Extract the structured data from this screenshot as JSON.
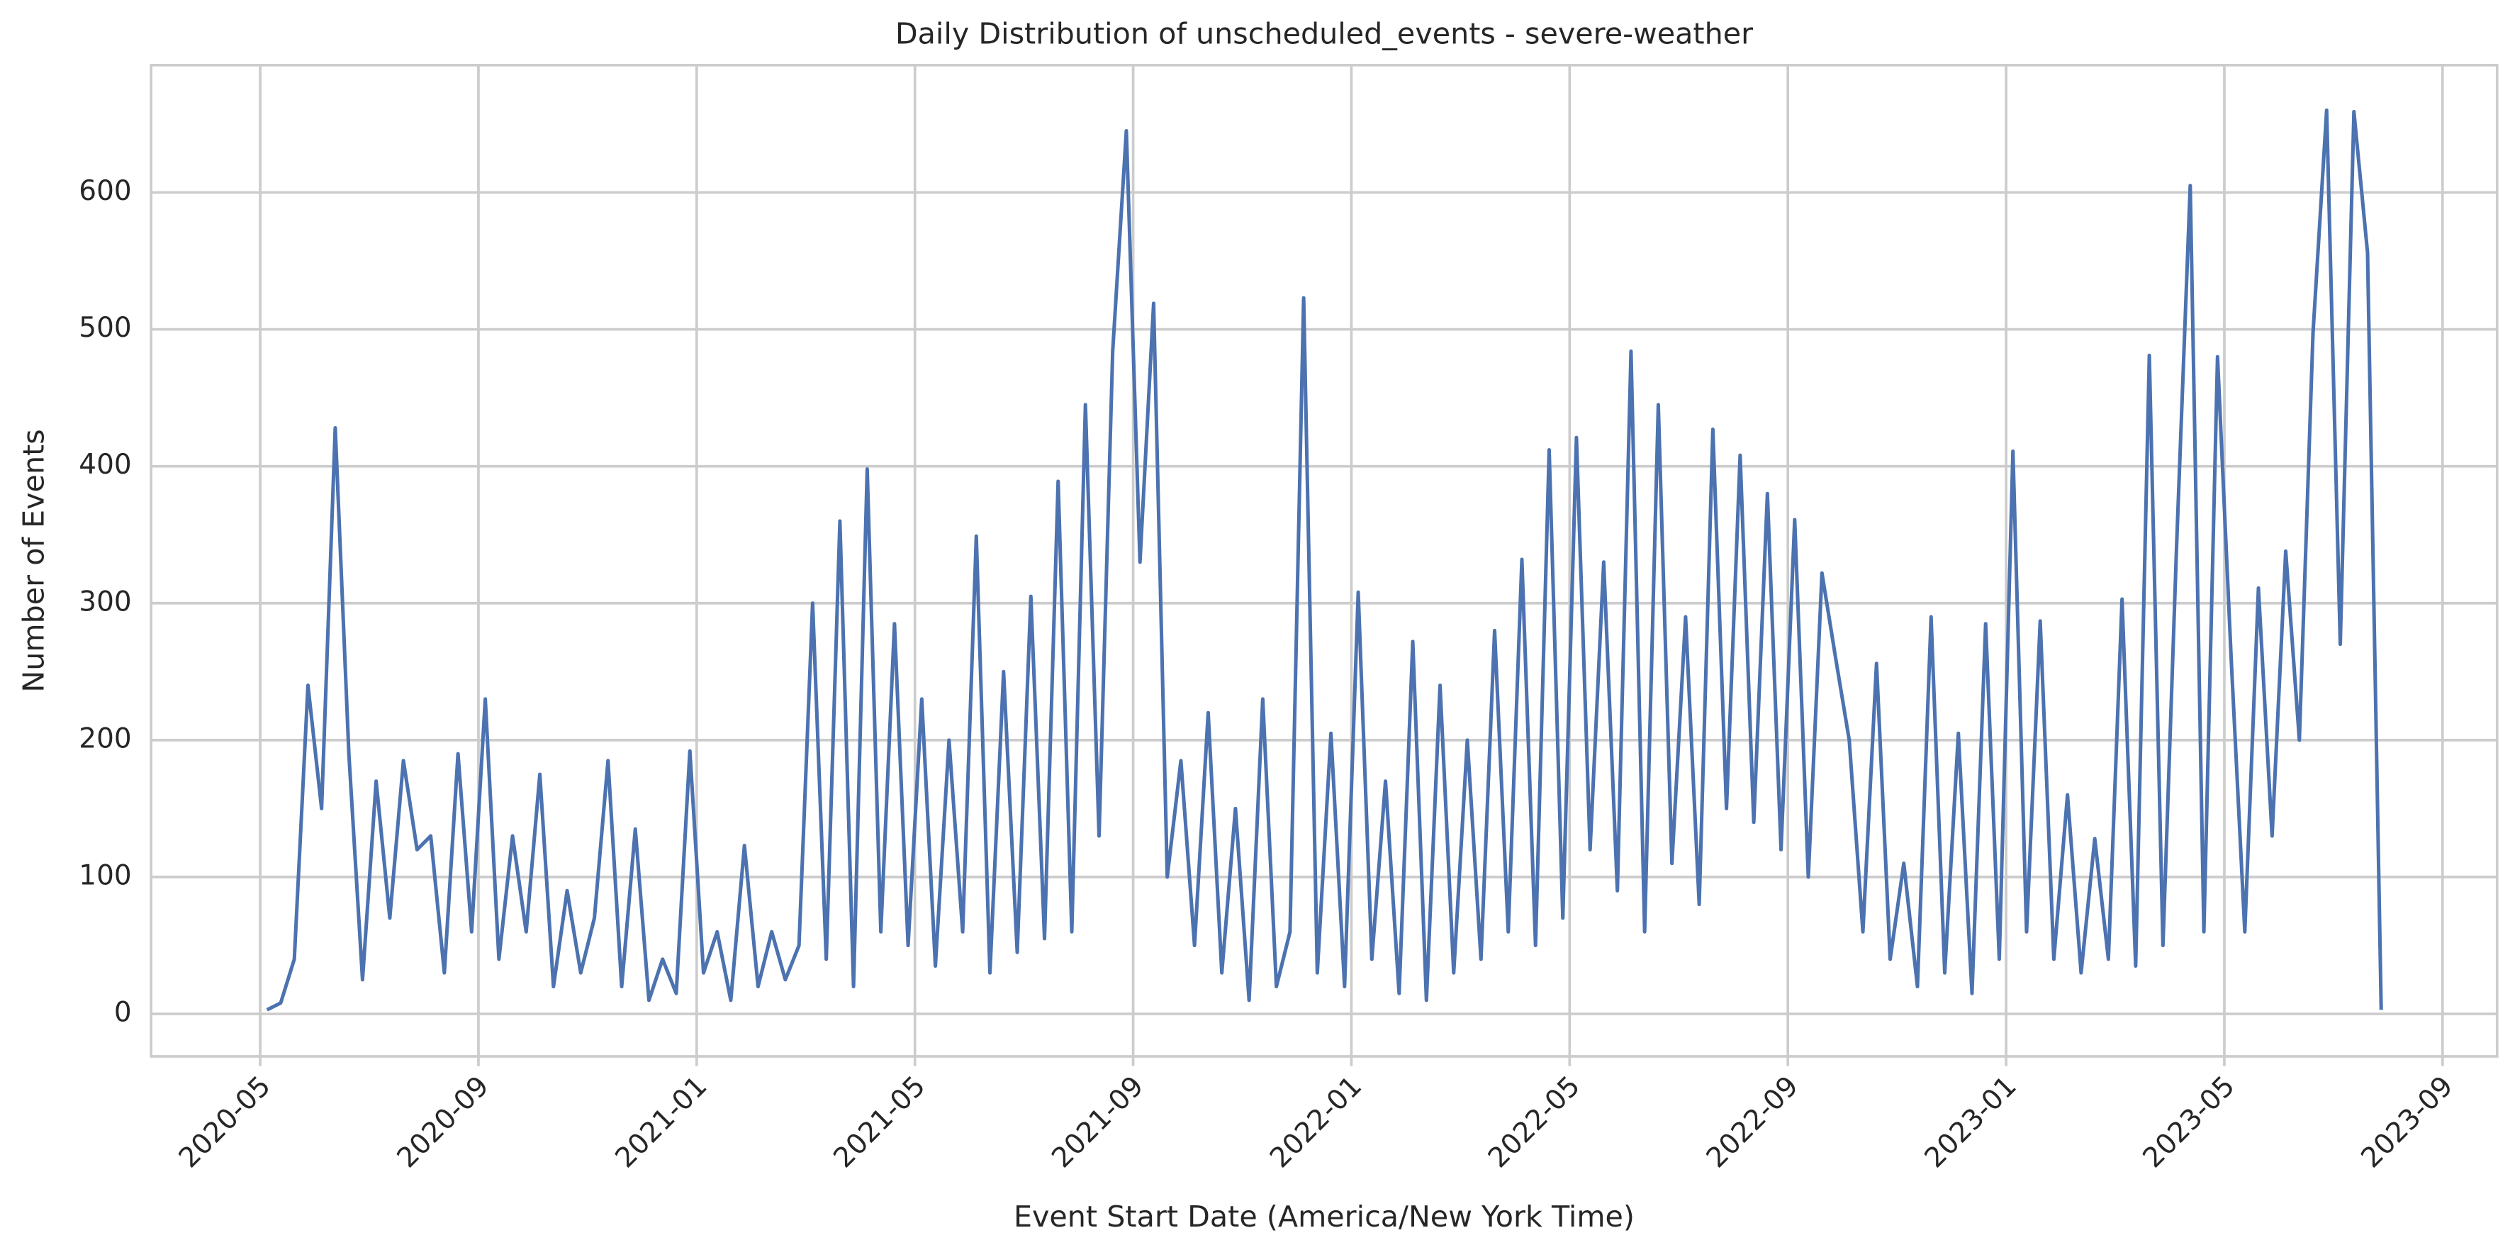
{
  "chart_data": {
    "type": "line",
    "title": "Daily Distribution of unscheduled_events - severe-weather",
    "x_label": "Event Start Date (America/New York Time)",
    "y_label": "Number of Events",
    "xlim": [
      "2020-03",
      "2023-10"
    ],
    "xticks": [
      "2020-05",
      "2020-09",
      "2021-01",
      "2021-05",
      "2021-09",
      "2022-01",
      "2022-05",
      "2022-09",
      "2023-01",
      "2023-05",
      "2023-09"
    ],
    "ylim": [
      -31,
      693
    ],
    "yticks": [
      0,
      100,
      200,
      300,
      400,
      500,
      600
    ],
    "grid": true,
    "x": [
      "2020-05",
      "2020-05",
      "2020-05",
      "2020-05",
      "2020-06",
      "2020-06",
      "2020-06",
      "2020-06",
      "2020-07",
      "2020-07",
      "2020-07",
      "2020-07",
      "2020-08",
      "2020-08",
      "2020-08",
      "2020-08",
      "2020-09",
      "2020-09",
      "2020-09",
      "2020-09",
      "2020-10",
      "2020-10",
      "2020-10",
      "2020-10",
      "2020-11",
      "2020-11",
      "2020-11",
      "2020-11",
      "2020-12",
      "2020-12",
      "2020-12",
      "2020-12",
      "2021-01",
      "2021-01",
      "2021-01",
      "2021-01",
      "2021-02",
      "2021-02",
      "2021-02",
      "2021-02",
      "2021-03",
      "2021-03",
      "2021-03",
      "2021-03",
      "2021-04",
      "2021-04",
      "2021-04",
      "2021-04",
      "2021-05",
      "2021-05",
      "2021-05",
      "2021-05",
      "2021-06",
      "2021-06",
      "2021-06",
      "2021-06",
      "2021-07",
      "2021-07",
      "2021-07",
      "2021-07",
      "2021-08",
      "2021-08",
      "2021-08",
      "2021-08",
      "2021-09",
      "2021-09",
      "2021-09",
      "2021-09",
      "2021-10",
      "2021-10",
      "2021-10",
      "2021-10",
      "2021-11",
      "2021-11",
      "2021-11",
      "2021-11",
      "2021-12",
      "2021-12",
      "2021-12",
      "2021-12",
      "2022-01",
      "2022-01",
      "2022-01",
      "2022-01",
      "2022-02",
      "2022-02",
      "2022-02",
      "2022-02",
      "2022-03",
      "2022-03",
      "2022-03",
      "2022-03",
      "2022-04",
      "2022-04",
      "2022-04",
      "2022-04",
      "2022-05",
      "2022-05",
      "2022-05",
      "2022-05",
      "2022-06",
      "2022-06",
      "2022-06",
      "2022-06",
      "2022-07",
      "2022-07",
      "2022-07",
      "2022-07",
      "2022-08",
      "2022-08",
      "2022-08",
      "2022-08",
      "2022-09",
      "2022-09",
      "2022-09",
      "2022-09",
      "2022-10",
      "2022-10",
      "2022-10",
      "2022-10",
      "2022-11",
      "2022-11",
      "2022-11",
      "2022-11",
      "2022-12",
      "2022-12",
      "2022-12",
      "2022-12",
      "2023-01",
      "2023-01",
      "2023-01",
      "2023-01",
      "2023-02",
      "2023-02",
      "2023-02",
      "2023-02",
      "2023-03",
      "2023-03",
      "2023-03",
      "2023-03",
      "2023-04",
      "2023-04",
      "2023-04",
      "2023-04",
      "2023-05",
      "2023-05",
      "2023-05",
      "2023-05",
      "2023-06",
      "2023-06",
      "2023-06",
      "2023-06",
      "2023-07",
      "2023-07",
      "2023-07",
      "2023-07"
    ],
    "series": [
      {
        "color": "#4c72b0",
        "values": [
          3,
          8,
          40,
          240,
          150,
          428,
          190,
          25,
          170,
          70,
          185,
          120,
          130,
          30,
          190,
          60,
          230,
          40,
          130,
          60,
          175,
          20,
          90,
          30,
          70,
          185,
          20,
          135,
          10,
          40,
          15,
          192,
          30,
          60,
          10,
          123,
          20,
          60,
          25,
          50,
          300,
          40,
          360,
          20,
          398,
          60,
          285,
          50,
          230,
          35,
          200,
          60,
          349,
          30,
          250,
          45,
          305,
          55,
          389,
          60,
          445,
          130,
          484,
          645,
          330,
          519,
          100,
          185,
          50,
          220,
          30,
          150,
          10,
          230,
          20,
          60,
          523,
          30,
          205,
          20,
          308,
          40,
          170,
          15,
          272,
          10,
          240,
          30,
          200,
          40,
          280,
          60,
          332,
          50,
          412,
          70,
          421,
          120,
          330,
          90,
          484,
          60,
          445,
          110,
          290,
          80,
          427,
          150,
          408,
          140,
          380,
          120,
          361,
          100,
          322,
          260,
          200,
          60,
          256,
          40,
          110,
          20,
          290,
          30,
          205,
          15,
          285,
          40,
          411,
          60,
          287,
          40,
          160,
          30,
          128,
          40,
          303,
          35,
          481,
          50,
          342,
          605,
          60,
          480,
          260,
          60,
          311,
          130,
          338,
          200,
          497,
          660,
          270,
          659,
          556,
          3
        ]
      }
    ]
  }
}
